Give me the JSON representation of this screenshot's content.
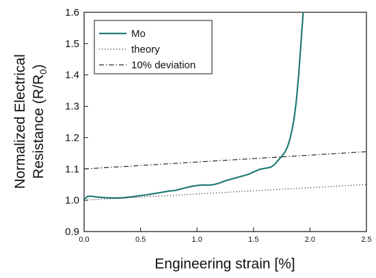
{
  "chart_data": {
    "type": "line",
    "xlabel": "Engineering strain [%]",
    "ylabel_line1": "Normalized Electrical",
    "ylabel_line2_main": "Resistance (R/R",
    "ylabel_line2_sub": "0",
    "ylabel_line2_end": ")",
    "xlim": [
      0.0,
      2.5
    ],
    "ylim": [
      0.9,
      1.6
    ],
    "xticks": [
      "0.0",
      "0.5",
      "1.0",
      "1.5",
      "2.0",
      "2.5"
    ],
    "yticks": [
      "0.9",
      "1.0",
      "1.1",
      "1.2",
      "1.3",
      "1.4",
      "1.5",
      "1.6"
    ],
    "legend_position": "top-left",
    "grid": false,
    "series": [
      {
        "name": "Mo",
        "style": "solid",
        "color": "#1f7a75",
        "x": [
          0.0,
          0.03,
          0.06,
          0.1,
          0.15,
          0.2,
          0.25,
          0.3,
          0.35,
          0.4,
          0.45,
          0.5,
          0.55,
          0.6,
          0.65,
          0.7,
          0.75,
          0.8,
          0.85,
          0.9,
          0.95,
          1.0,
          1.05,
          1.1,
          1.15,
          1.2,
          1.25,
          1.3,
          1.35,
          1.4,
          1.45,
          1.5,
          1.55,
          1.6,
          1.65,
          1.68,
          1.7,
          1.72,
          1.75,
          1.78,
          1.8,
          1.82,
          1.84,
          1.86,
          1.88,
          1.9,
          1.92,
          1.94
        ],
        "y": [
          1.003,
          1.012,
          1.013,
          1.011,
          1.009,
          1.008,
          1.007,
          1.007,
          1.008,
          1.01,
          1.012,
          1.015,
          1.017,
          1.02,
          1.023,
          1.026,
          1.029,
          1.031,
          1.035,
          1.04,
          1.044,
          1.047,
          1.049,
          1.048,
          1.05,
          1.055,
          1.062,
          1.067,
          1.072,
          1.077,
          1.082,
          1.09,
          1.098,
          1.102,
          1.105,
          1.112,
          1.12,
          1.128,
          1.14,
          1.155,
          1.17,
          1.192,
          1.222,
          1.262,
          1.32,
          1.4,
          1.5,
          1.6
        ]
      },
      {
        "name": "theory",
        "style": "dotted",
        "color": "#222222",
        "x": [
          0.0,
          2.5
        ],
        "y": [
          1.0,
          1.05
        ]
      },
      {
        "name": "10% deviation",
        "style": "dashdot",
        "color": "#222222",
        "x": [
          0.0,
          2.5
        ],
        "y": [
          1.1,
          1.155
        ]
      }
    ]
  }
}
